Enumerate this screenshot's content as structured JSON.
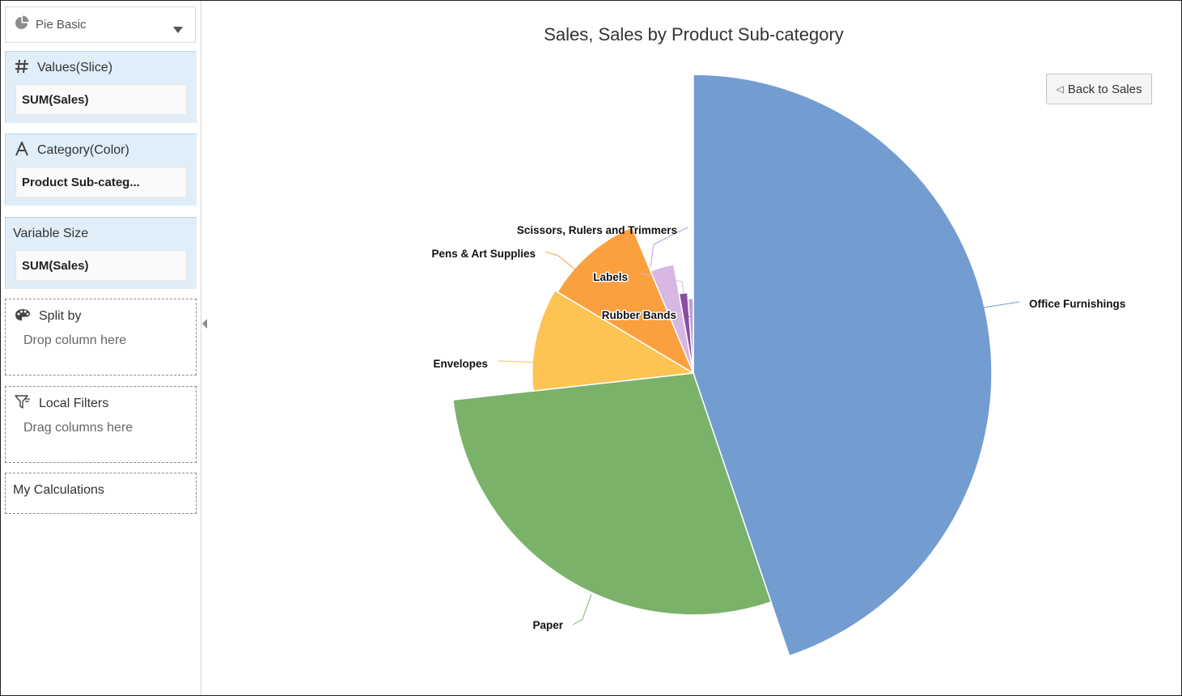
{
  "sidebar": {
    "viz_type": {
      "label": "Pie Basic",
      "icon": "pie-chart-icon"
    },
    "values_zone": {
      "title": "Values(Slice)",
      "icon": "hash-icon",
      "pill": "SUM(Sales)"
    },
    "category_zone": {
      "title": "Category(Color)",
      "icon": "attribute-a-icon",
      "pill": "Product Sub-categ..."
    },
    "variable_size_zone": {
      "title": "Variable Size",
      "pill": "SUM(Sales)"
    },
    "split_by": {
      "title": "Split by",
      "icon": "palette-icon",
      "placeholder": "Drop column here"
    },
    "local_filters": {
      "title": "Local Filters",
      "icon": "filter-icon",
      "placeholder": "Drag columns here"
    },
    "my_calculations": {
      "title": "My Calculations"
    }
  },
  "chart": {
    "title": "Sales, Sales by Product Sub-category",
    "back_button": "Back to Sales"
  },
  "chart_data": {
    "type": "pie",
    "variant": "variable-radius",
    "title": "Sales, Sales by Product Sub-category",
    "value_measure": "SUM(Sales)",
    "size_measure": "SUM(Sales)",
    "categories": [
      "Office Furnishings",
      "Paper",
      "Envelopes",
      "Pens & Art Supplies",
      "Labels",
      "Rubber Bands",
      "Scissors, Rulers and Trimmers"
    ],
    "shares": [
      0.4479,
      0.2844,
      0.1033,
      0.1012,
      0.0349,
      0.0169,
      0.0114
    ],
    "radius_relative": [
      1.0,
      0.81,
      0.54,
      0.53,
      0.37,
      0.27,
      0.25
    ],
    "colors": [
      "#739cd1",
      "#7ab26a",
      "#fdc453",
      "#fba03e",
      "#d7b7e3",
      "#8a4da2",
      "#c29ed6"
    ],
    "legend": "none"
  }
}
